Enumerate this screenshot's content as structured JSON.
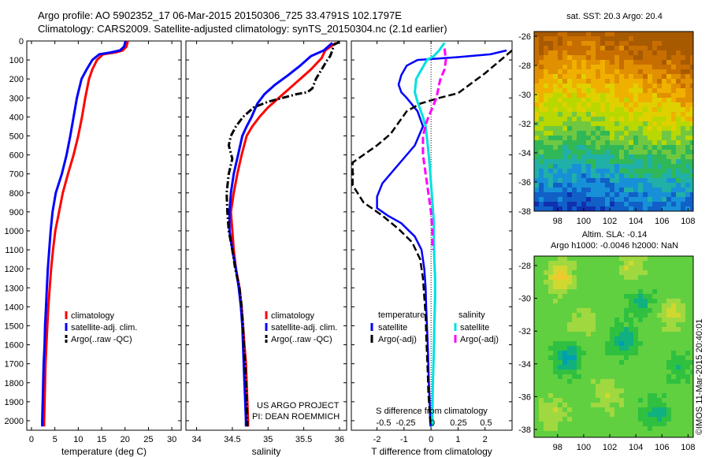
{
  "header": {
    "line1": "Argo profile: AO 5902352_17 06-Mar-2015 20150306_725 33.4791S 102.1797E",
    "line2": "Climatology: CARS2009. Satellite-adjusted climatology: synTS_20150304.nc (2.1d earlier)"
  },
  "colors": {
    "climatology": "#ff0000",
    "satellite": "#0000ff",
    "argo": "#000000",
    "sat_salinity": "#00e0e0",
    "argo_salinity": "#ff00ff"
  },
  "chart_data": [
    {
      "type": "line",
      "xlabel": "temperature (deg C)",
      "xlim": [
        -1,
        32
      ],
      "xticks": [
        0,
        5,
        10,
        15,
        20,
        25,
        30
      ],
      "ylim": [
        0,
        2050
      ],
      "yticks": [
        0,
        100,
        200,
        300,
        400,
        500,
        600,
        700,
        800,
        900,
        1000,
        1100,
        1200,
        1300,
        1400,
        1500,
        1600,
        1700,
        1800,
        1900,
        2000
      ],
      "legend": [
        "climatology",
        "satellite-adj. clim.",
        "Argo(..raw -QC)"
      ],
      "series": [
        {
          "name": "climatology",
          "points": [
            [
              20.6,
              0
            ],
            [
              20.3,
              30
            ],
            [
              19.5,
              50
            ],
            [
              18,
              60
            ],
            [
              15.3,
              70
            ],
            [
              14,
              100
            ],
            [
              13,
              150
            ],
            [
              12.3,
              200
            ],
            [
              11.5,
              300
            ],
            [
              10.8,
              400
            ],
            [
              10,
              500
            ],
            [
              9,
              600
            ],
            [
              7.8,
              700
            ],
            [
              6.7,
              800
            ],
            [
              5.9,
              900
            ],
            [
              5.1,
              1000
            ],
            [
              4.6,
              1100
            ],
            [
              4.2,
              1200
            ],
            [
              3.9,
              1300
            ],
            [
              3.6,
              1400
            ],
            [
              3.4,
              1500
            ],
            [
              3.2,
              1600
            ],
            [
              3.0,
              1700
            ],
            [
              2.9,
              1800
            ],
            [
              2.8,
              1900
            ],
            [
              2.7,
              2000
            ],
            [
              2.7,
              2030
            ]
          ]
        },
        {
          "name": "satellite-adj. clim.",
          "points": [
            [
              20.1,
              0
            ],
            [
              19.8,
              30
            ],
            [
              18.9,
              50
            ],
            [
              17,
              60
            ],
            [
              14.5,
              70
            ],
            [
              13,
              100
            ],
            [
              11.8,
              150
            ],
            [
              10.7,
              200
            ],
            [
              9.7,
              300
            ],
            [
              9,
              400
            ],
            [
              8.3,
              500
            ],
            [
              7.5,
              600
            ],
            [
              6.5,
              700
            ],
            [
              5.2,
              800
            ],
            [
              4.5,
              900
            ],
            [
              4.1,
              1000
            ],
            [
              3.8,
              1100
            ],
            [
              3.5,
              1200
            ],
            [
              3.3,
              1300
            ],
            [
              3.1,
              1400
            ],
            [
              2.9,
              1500
            ],
            [
              2.8,
              1600
            ],
            [
              2.6,
              1700
            ],
            [
              2.5,
              1800
            ],
            [
              2.4,
              1900
            ],
            [
              2.3,
              2000
            ],
            [
              2.3,
              2030
            ]
          ]
        }
      ]
    },
    {
      "type": "line",
      "xlabel": "salinity",
      "xlim": [
        33.85,
        36.1
      ],
      "xticks": [
        34,
        34.5,
        35,
        35.5,
        36
      ],
      "ylim": [
        0,
        2050
      ],
      "legend": [
        "climatology",
        "satellite-adj. clim.",
        "Argo(..raw -QC)"
      ],
      "annotations": [
        "US ARGO PROJECT",
        "PI: DEAN ROEMMICH"
      ],
      "series": [
        {
          "name": "climatology",
          "points": [
            [
              35.95,
              10
            ],
            [
              35.8,
              50
            ],
            [
              35.75,
              90
            ],
            [
              35.6,
              150
            ],
            [
              35.45,
              200
            ],
            [
              35.3,
              250
            ],
            [
              35.15,
              300
            ],
            [
              35.0,
              350
            ],
            [
              34.88,
              400
            ],
            [
              34.78,
              450
            ],
            [
              34.7,
              500
            ],
            [
              34.63,
              600
            ],
            [
              34.57,
              700
            ],
            [
              34.52,
              800
            ],
            [
              34.48,
              900
            ],
            [
              34.5,
              1000
            ],
            [
              34.52,
              1100
            ],
            [
              34.55,
              1200
            ],
            [
              34.6,
              1300
            ],
            [
              34.63,
              1400
            ],
            [
              34.65,
              1500
            ],
            [
              34.67,
              1600
            ],
            [
              34.69,
              1700
            ],
            [
              34.7,
              1800
            ],
            [
              34.71,
              1900
            ],
            [
              34.72,
              2000
            ],
            [
              34.72,
              2030
            ]
          ]
        },
        {
          "name": "satellite-adj. clim.",
          "points": [
            [
              35.9,
              10
            ],
            [
              35.78,
              50
            ],
            [
              35.6,
              80
            ],
            [
              35.45,
              130
            ],
            [
              35.28,
              180
            ],
            [
              35.1,
              230
            ],
            [
              34.95,
              280
            ],
            [
              34.85,
              330
            ],
            [
              34.77,
              400
            ],
            [
              34.7,
              450
            ],
            [
              34.64,
              500
            ],
            [
              34.58,
              600
            ],
            [
              34.52,
              700
            ],
            [
              34.48,
              800
            ],
            [
              34.46,
              900
            ],
            [
              34.46,
              1000
            ],
            [
              34.5,
              1100
            ],
            [
              34.55,
              1200
            ],
            [
              34.59,
              1300
            ],
            [
              34.62,
              1400
            ],
            [
              34.64,
              1500
            ],
            [
              34.65,
              1600
            ],
            [
              34.66,
              1700
            ],
            [
              34.67,
              1800
            ],
            [
              34.68,
              1900
            ],
            [
              34.69,
              2000
            ],
            [
              34.69,
              2030
            ]
          ]
        },
        {
          "name": "Argo(..raw -QC)",
          "points": [
            [
              36.0,
              5
            ],
            [
              35.92,
              20
            ],
            [
              35.9,
              50
            ],
            [
              35.87,
              80
            ],
            [
              35.83,
              100
            ],
            [
              35.75,
              150
            ],
            [
              35.67,
              200
            ],
            [
              35.62,
              250
            ],
            [
              35.55,
              270
            ],
            [
              35.4,
              280
            ],
            [
              35.2,
              300
            ],
            [
              35.0,
              320
            ],
            [
              34.8,
              350
            ],
            [
              34.65,
              400
            ],
            [
              34.55,
              450
            ],
            [
              34.48,
              500
            ],
            [
              34.45,
              550
            ],
            [
              34.5,
              620
            ],
            [
              34.45,
              700
            ],
            [
              34.42,
              800
            ],
            [
              34.43,
              900
            ],
            [
              34.45,
              1000
            ],
            [
              34.5,
              1100
            ],
            [
              34.54,
              1200
            ],
            [
              34.6,
              1300
            ],
            [
              34.63,
              1400
            ],
            [
              34.65,
              1500
            ],
            [
              34.66,
              1600
            ],
            [
              34.68,
              1700
            ],
            [
              34.69,
              1800
            ],
            [
              34.7,
              1900
            ],
            [
              34.71,
              2000
            ],
            [
              34.71,
              2030
            ]
          ]
        }
      ]
    },
    {
      "type": "line",
      "xlabel": "T difference from climatology",
      "xlim": [
        -2.95,
        3.0
      ],
      "xticks": [
        -2,
        -1,
        0,
        1,
        2
      ],
      "top_label": "S difference from climatology",
      "salinity_ticks": [
        "-0.5",
        "-0.25",
        "0",
        "0.25",
        "0.5"
      ],
      "ylim": [
        0,
        2050
      ],
      "legend_temperature": [
        "temperature",
        "satellite",
        "Argo(-adj)"
      ],
      "legend_salinity": [
        "salinity",
        "satellite",
        "Argo(-adj)"
      ],
      "series": [
        {
          "name": "temperature satellite",
          "points": [
            [
              2.8,
              50
            ],
            [
              2.2,
              70
            ],
            [
              1.0,
              85
            ],
            [
              -0.5,
              100
            ],
            [
              -0.9,
              130
            ],
            [
              -1.1,
              180
            ],
            [
              -1.2,
              230
            ],
            [
              -1.1,
              270
            ],
            [
              -0.9,
              300
            ],
            [
              -0.5,
              370
            ],
            [
              -0.3,
              450
            ],
            [
              -0.6,
              550
            ],
            [
              -1.2,
              650
            ],
            [
              -1.8,
              750
            ],
            [
              -2.0,
              820
            ],
            [
              -2.0,
              880
            ],
            [
              -1.6,
              920
            ],
            [
              -1.1,
              960
            ],
            [
              -0.6,
              1030
            ],
            [
              -0.35,
              1100
            ],
            [
              -0.25,
              1200
            ],
            [
              -0.2,
              1300
            ],
            [
              -0.18,
              1400
            ],
            [
              -0.15,
              1500
            ],
            [
              -0.12,
              1600
            ],
            [
              -0.1,
              1700
            ],
            [
              -0.08,
              1800
            ],
            [
              -0.05,
              1900
            ],
            [
              -0.03,
              2000
            ],
            [
              -0.02,
              2030
            ]
          ]
        },
        {
          "name": "temperature Argo(-adj)",
          "points": [
            [
              3.0,
              50
            ],
            [
              2.0,
              170
            ],
            [
              1.0,
              275
            ],
            [
              0.3,
              300
            ],
            [
              -0.4,
              330
            ],
            [
              -0.9,
              370
            ],
            [
              -1.2,
              430
            ],
            [
              -1.5,
              490
            ],
            [
              -2.0,
              550
            ],
            [
              -2.5,
              600
            ],
            [
              -2.9,
              640
            ],
            [
              -2.9,
              760
            ],
            [
              -2.5,
              850
            ],
            [
              -1.8,
              920
            ],
            [
              -1.2,
              990
            ],
            [
              -0.7,
              1060
            ],
            [
              -0.4,
              1150
            ],
            [
              -0.3,
              1250
            ],
            [
              -0.25,
              1350
            ],
            [
              -0.2,
              1450
            ],
            [
              -0.18,
              1550
            ],
            [
              -0.15,
              1650
            ],
            [
              -0.12,
              1750
            ],
            [
              -0.1,
              1850
            ],
            [
              -0.05,
              1950
            ],
            [
              -0.02,
              2030
            ]
          ]
        },
        {
          "name": "salinity satellite",
          "points": [
            [
              0.5,
              10
            ],
            [
              0.3,
              50
            ],
            [
              0.1,
              80
            ],
            [
              -0.15,
              100
            ],
            [
              -0.35,
              150
            ],
            [
              -0.55,
              200
            ],
            [
              -0.6,
              270
            ],
            [
              -0.5,
              320
            ],
            [
              -0.3,
              400
            ],
            [
              -0.2,
              450
            ],
            [
              -0.12,
              550
            ],
            [
              -0.05,
              650
            ],
            [
              0.0,
              750
            ],
            [
              0.05,
              850
            ],
            [
              0.1,
              950
            ],
            [
              0.1,
              1050
            ],
            [
              0.12,
              1150
            ],
            [
              0.15,
              1250
            ],
            [
              0.15,
              1350
            ],
            [
              0.12,
              1500
            ],
            [
              0.1,
              1650
            ],
            [
              0.07,
              1800
            ],
            [
              0.05,
              1950
            ],
            [
              0.05,
              2030
            ]
          ]
        },
        {
          "name": "salinity Argo(-adj)",
          "points": [
            [
              0.5,
              40
            ],
            [
              0.55,
              100
            ],
            [
              0.5,
              150
            ],
            [
              0.35,
              200
            ],
            [
              0.3,
              230
            ],
            [
              0.2,
              300
            ],
            [
              -0.15,
              420
            ],
            [
              -0.3,
              500
            ],
            [
              -0.3,
              600
            ],
            [
              -0.2,
              700
            ],
            [
              -0.1,
              800
            ],
            [
              0.0,
              900
            ],
            [
              0.05,
              1000
            ],
            [
              0.05,
              1100
            ]
          ]
        }
      ]
    }
  ],
  "maps": {
    "sst": {
      "title": "sat. SST: 20.3 Argo: 20.4",
      "yticks": [
        "-26",
        "-28",
        "-30",
        "-32",
        "-34",
        "-36",
        "-38"
      ],
      "xticks": [
        "98",
        "100",
        "102",
        "104",
        "106",
        "108"
      ]
    },
    "sla": {
      "title_line1": "Altim. SLA: -0.14",
      "title_line2": "Argo h1000: -0.0046 h2000: NaN",
      "yticks": [
        "-28",
        "-30",
        "-32",
        "-34",
        "-36",
        "-38"
      ],
      "xticks": [
        "98",
        "100",
        "102",
        "104",
        "106",
        "108"
      ]
    }
  },
  "credit": "©IMOS 11-Mar-2015 20:40:01"
}
